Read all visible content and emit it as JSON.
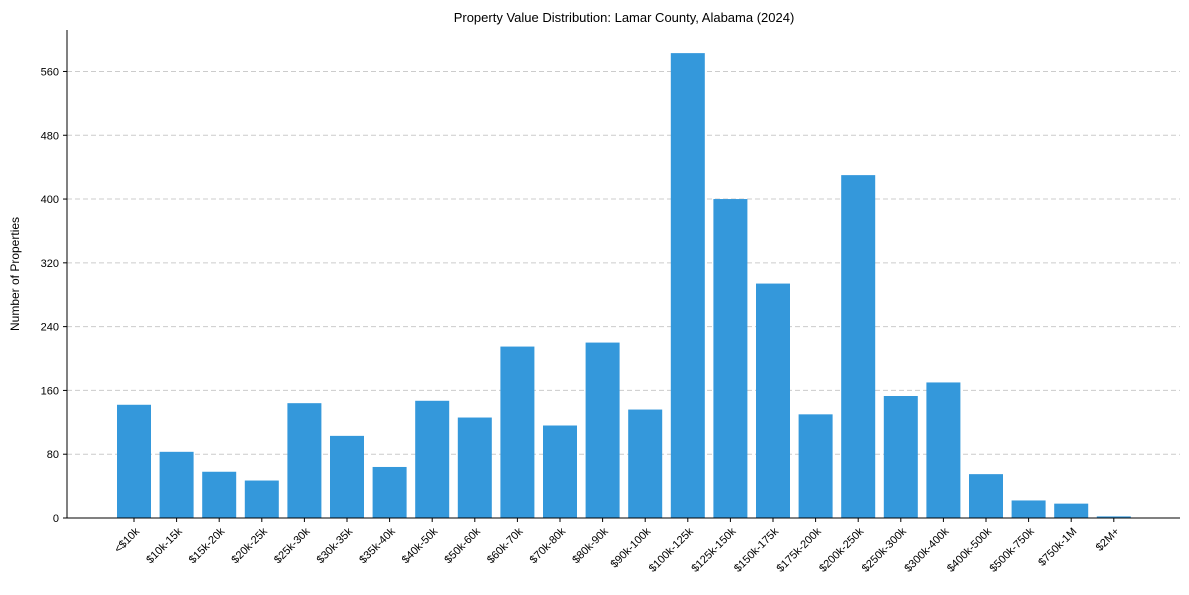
{
  "chart_data": {
    "type": "bar",
    "title": "Property Value Distribution: Lamar County, Alabama (2024)",
    "xlabel": "",
    "ylabel": "Number of Properties",
    "ylim": [
      0,
      612
    ],
    "yticks": [
      0,
      80,
      160,
      240,
      320,
      400,
      480,
      560
    ],
    "grid": "y-dashed",
    "bar_color": "#3498db",
    "categories": [
      "<$10k",
      "$10k-15k",
      "$15k-20k",
      "$20k-25k",
      "$25k-30k",
      "$30k-35k",
      "$35k-40k",
      "$40k-50k",
      "$50k-60k",
      "$60k-70k",
      "$70k-80k",
      "$80k-90k",
      "$90k-100k",
      "$100k-125k",
      "$125k-150k",
      "$150k-175k",
      "$175k-200k",
      "$200k-250k",
      "$250k-300k",
      "$300k-400k",
      "$400k-500k",
      "$500k-750k",
      "$750k-1M",
      "$2M+"
    ],
    "values": [
      142,
      83,
      58,
      47,
      144,
      103,
      64,
      147,
      126,
      215,
      116,
      220,
      136,
      583,
      400,
      294,
      130,
      430,
      153,
      170,
      55,
      22,
      18,
      2
    ]
  }
}
